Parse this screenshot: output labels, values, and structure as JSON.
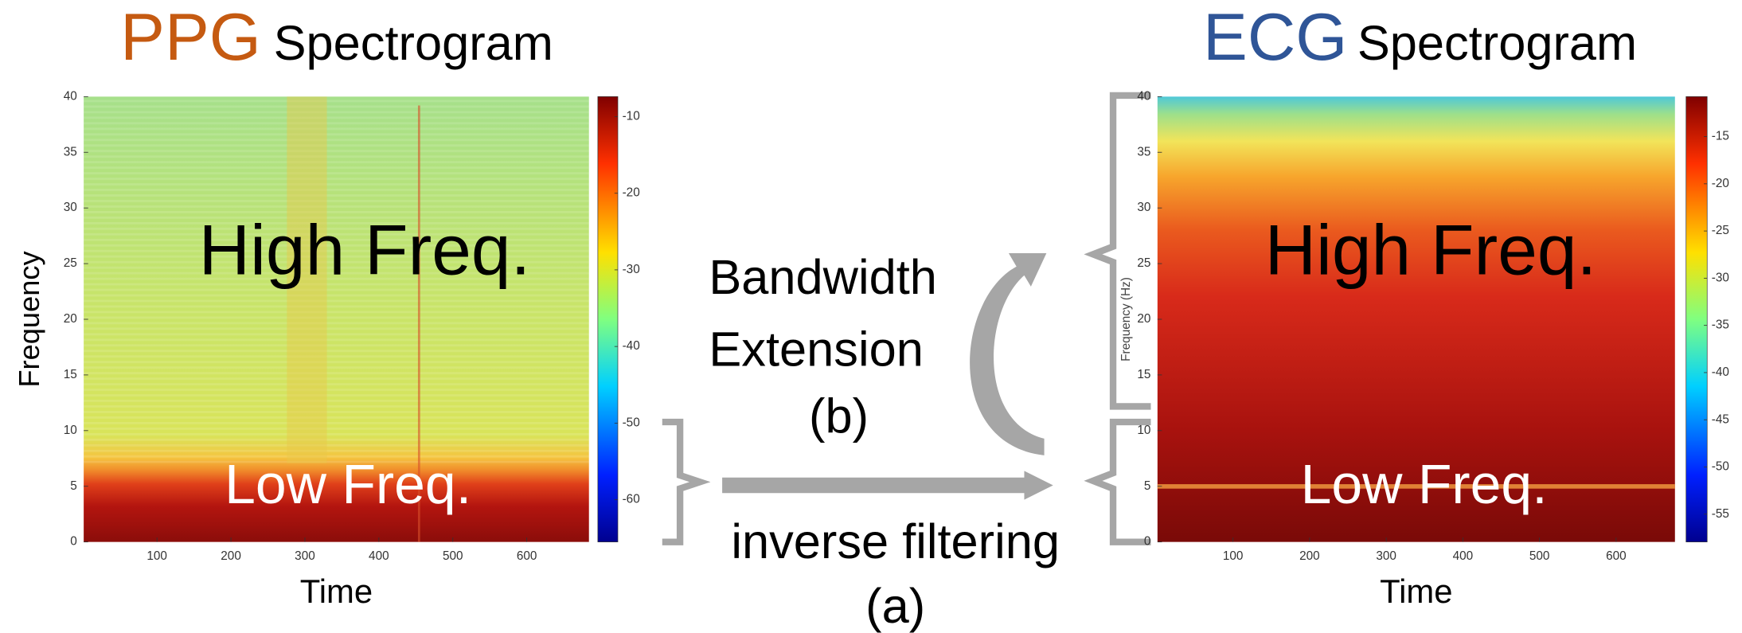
{
  "left": {
    "title": "PPG",
    "subtitle": "Spectrogram",
    "y_label": "Frequency",
    "x_label": "Time",
    "yticks": [
      0,
      5,
      10,
      15,
      20,
      25,
      30,
      35,
      40
    ],
    "xticks": [
      100,
      200,
      300,
      400,
      500,
      600
    ],
    "colorbar_ticks": [
      -10,
      -20,
      -30,
      -40,
      -50,
      -60
    ],
    "high_label": "High Freq.",
    "low_label": "Low Freq."
  },
  "right": {
    "title": "ECG",
    "subtitle": "Spectrogram",
    "y_label": "Frequency (Hz)",
    "x_label": "Time",
    "yticks": [
      0,
      5,
      10,
      15,
      20,
      25,
      30,
      35,
      40
    ],
    "xticks": [
      100,
      200,
      300,
      400,
      500,
      600
    ],
    "colorbar_ticks": [
      -15,
      -20,
      -25,
      -30,
      -35,
      -40,
      -45,
      -50,
      -55
    ],
    "high_label": "High Freq.",
    "low_label": "Low Freq."
  },
  "middle": {
    "extension_lines": [
      "Bandwidth",
      "Extension",
      "(b)"
    ],
    "filtering_lines": [
      "inverse filtering",
      "(a)"
    ]
  }
}
